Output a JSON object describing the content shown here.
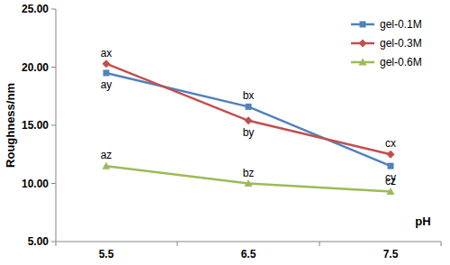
{
  "chart_data": {
    "type": "line",
    "x_label": "pH",
    "y_label": "Roughness/nm",
    "categories": [
      "5.5",
      "6.5",
      "7.5"
    ],
    "ylim": [
      5,
      25
    ],
    "yticks": [
      {
        "value": 5,
        "label": "5.00"
      },
      {
        "value": 10,
        "label": "10.00"
      },
      {
        "value": 15,
        "label": "15.00"
      },
      {
        "value": 20,
        "label": "20.00"
      },
      {
        "value": 25,
        "label": "25.00"
      }
    ],
    "grid": false,
    "legend": "upper right",
    "series": [
      {
        "name": "gel-0.1M",
        "color": "#4f81bd",
        "marker": "square",
        "values": [
          19.5,
          16.6,
          11.5
        ],
        "point_labels": [
          "ay",
          "bx",
          "cy"
        ]
      },
      {
        "name": "gel-0.3M",
        "color": "#c0504d",
        "marker": "diamond",
        "values": [
          20.3,
          15.4,
          12.5
        ],
        "point_labels": [
          "ax",
          "by",
          "cx"
        ]
      },
      {
        "name": "gel-0.6M",
        "color": "#9bbb59",
        "marker": "triangle",
        "values": [
          11.5,
          10.0,
          9.3
        ],
        "point_labels": [
          "az",
          "bz",
          "cz"
        ]
      }
    ]
  }
}
